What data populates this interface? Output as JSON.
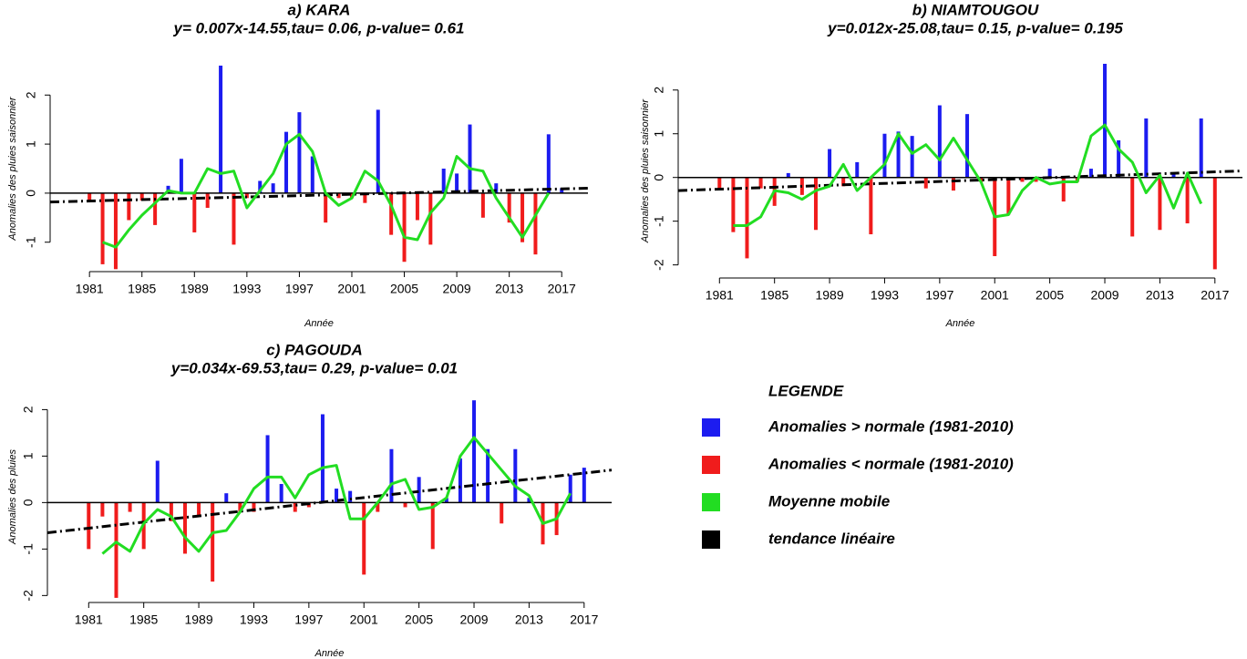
{
  "chart_data": [
    {
      "type": "bar",
      "title": "a) KARA",
      "subtitle": "y= 0.007x-14.55,tau= 0.06, p-value= 0.61",
      "x_label": "Année",
      "y_label": "Anomalies des pluies saisonnier",
      "x": [
        1981,
        1982,
        1983,
        1984,
        1985,
        1986,
        1987,
        1988,
        1989,
        1990,
        1991,
        1992,
        1993,
        1994,
        1995,
        1996,
        1997,
        1998,
        1999,
        2000,
        2001,
        2002,
        2003,
        2004,
        2005,
        2006,
        2007,
        2008,
        2009,
        2010,
        2011,
        2012,
        2013,
        2014,
        2015,
        2016,
        2017
      ],
      "values": [
        -0.15,
        -1.45,
        -1.55,
        -0.55,
        -0.15,
        -0.65,
        0.15,
        0.7,
        -0.8,
        -0.3,
        2.6,
        -1.05,
        -0.1,
        0.25,
        0.2,
        1.25,
        1.65,
        0.75,
        -0.6,
        -0.1,
        -0.1,
        -0.2,
        1.7,
        -0.85,
        -1.4,
        -0.55,
        -1.05,
        0.5,
        0.4,
        1.4,
        -0.5,
        0.2,
        -0.6,
        -1.0,
        -1.25,
        1.2,
        0.1
      ],
      "moving_average": [
        null,
        -1.0,
        -1.1,
        -0.75,
        -0.45,
        -0.2,
        0.05,
        0.0,
        0.0,
        0.5,
        0.4,
        0.45,
        -0.3,
        0.05,
        0.4,
        1.0,
        1.2,
        0.85,
        0.0,
        -0.25,
        -0.1,
        0.45,
        0.25,
        -0.25,
        -0.9,
        -0.95,
        -0.4,
        -0.1,
        0.75,
        0.5,
        0.45,
        -0.1,
        -0.5,
        -0.9,
        -0.45,
        0.0,
        null
      ],
      "trend": {
        "x": [
          1978,
          2019
        ],
        "values": [
          -0.18,
          0.1
        ]
      },
      "color_above": "#1c1cf0",
      "color_below": "#f01c1c",
      "ma_color": "#22dd22",
      "trend_color": "#000000",
      "xlim": [
        1978,
        2019
      ],
      "ylim": [
        -1.6,
        2.6
      ],
      "xticks": [
        1981,
        1985,
        1989,
        1993,
        1997,
        2001,
        2005,
        2009,
        2013,
        2017
      ],
      "yticks": [
        -1,
        0,
        1,
        2
      ]
    },
    {
      "type": "bar",
      "title": "b) NIAMTOUGOU",
      "subtitle": "y=0.012x-25.08,tau= 0.15, p-value= 0.195",
      "x_label": "Année",
      "y_label": "Anomalies des pluies saisonnier",
      "x": [
        1981,
        1982,
        1983,
        1984,
        1985,
        1986,
        1987,
        1988,
        1989,
        1990,
        1991,
        1992,
        1993,
        1994,
        1995,
        1996,
        1997,
        1998,
        1999,
        2000,
        2001,
        2002,
        2003,
        2004,
        2005,
        2006,
        2007,
        2008,
        2009,
        2010,
        2011,
        2012,
        2013,
        2014,
        2015,
        2016,
        2017
      ],
      "values": [
        -0.25,
        -1.25,
        -1.85,
        -0.25,
        -0.65,
        0.1,
        -0.4,
        -1.2,
        0.65,
        -0.2,
        0.35,
        -1.3,
        1.0,
        1.05,
        0.95,
        -0.25,
        1.65,
        -0.3,
        1.45,
        -0.1,
        -1.8,
        -0.85,
        -0.1,
        -0.1,
        0.2,
        -0.55,
        -0.1,
        0.2,
        2.6,
        0.85,
        -1.35,
        1.35,
        -1.2,
        0.1,
        -1.05,
        1.35,
        -2.1
      ],
      "moving_average": [
        null,
        -1.1,
        -1.1,
        -0.9,
        -0.3,
        -0.35,
        -0.5,
        -0.3,
        -0.2,
        0.3,
        -0.3,
        0.0,
        0.3,
        1.0,
        0.55,
        0.75,
        0.4,
        0.9,
        0.4,
        -0.1,
        -0.9,
        -0.85,
        -0.3,
        0.0,
        -0.15,
        -0.1,
        -0.1,
        0.95,
        1.2,
        0.65,
        0.35,
        -0.35,
        0.05,
        -0.7,
        0.1,
        -0.6,
        null
      ],
      "trend": {
        "x": [
          1978,
          2019
        ],
        "values": [
          -0.3,
          0.15
        ]
      },
      "color_above": "#1c1cf0",
      "color_below": "#f01c1c",
      "ma_color": "#22dd22",
      "trend_color": "#000000",
      "xlim": [
        1978,
        2019
      ],
      "ylim": [
        -2.3,
        2.6
      ],
      "xticks": [
        1981,
        1985,
        1989,
        1993,
        1997,
        2001,
        2005,
        2009,
        2013,
        2017
      ],
      "yticks": [
        -2,
        -1,
        0,
        1,
        2
      ]
    },
    {
      "type": "bar",
      "title": "c) PAGOUDA",
      "subtitle": "y=0.034x-69.53,tau= 0.29, p-value= 0.01",
      "x_label": "Année",
      "y_label": "Anomalies des pluies",
      "x": [
        1981,
        1982,
        1983,
        1984,
        1985,
        1986,
        1987,
        1988,
        1989,
        1990,
        1991,
        1992,
        1993,
        1994,
        1995,
        1996,
        1997,
        1998,
        1999,
        2000,
        2001,
        2002,
        2003,
        2004,
        2005,
        2006,
        2007,
        2008,
        2009,
        2010,
        2011,
        2012,
        2013,
        2014,
        2015,
        2016,
        2017
      ],
      "values": [
        -1.0,
        -0.3,
        -2.05,
        -0.2,
        -1.0,
        0.9,
        -0.4,
        -1.1,
        -0.3,
        -1.7,
        0.2,
        -0.2,
        -0.2,
        1.45,
        0.4,
        -0.2,
        -0.1,
        1.9,
        0.3,
        0.25,
        -1.55,
        -0.2,
        1.15,
        -0.1,
        0.55,
        -1.0,
        0.1,
        0.95,
        2.2,
        1.15,
        -0.45,
        1.15,
        0.1,
        -0.9,
        -0.7,
        0.6,
        0.75
      ],
      "moving_average": [
        null,
        -1.1,
        -0.85,
        -1.05,
        -0.45,
        -0.15,
        -0.3,
        -0.75,
        -1.05,
        -0.65,
        -0.6,
        -0.2,
        0.3,
        0.55,
        0.55,
        0.1,
        0.6,
        0.75,
        0.8,
        -0.35,
        -0.35,
        0.0,
        0.4,
        0.5,
        -0.15,
        -0.1,
        0.1,
        1.0,
        1.4,
        1.05,
        0.7,
        0.35,
        0.15,
        -0.45,
        -0.35,
        0.2,
        null
      ],
      "trend": {
        "x": [
          1978,
          2019
        ],
        "values": [
          -0.65,
          0.7
        ]
      },
      "color_above": "#1c1cf0",
      "color_below": "#f01c1c",
      "ma_color": "#22dd22",
      "trend_color": "#000000",
      "xlim": [
        1978,
        2019
      ],
      "ylim": [
        -2.15,
        2.4
      ],
      "xticks": [
        1981,
        1985,
        1989,
        1993,
        1997,
        2001,
        2005,
        2009,
        2013,
        2017
      ],
      "yticks": [
        -2,
        -1,
        0,
        1,
        2
      ]
    }
  ],
  "legend": {
    "title": "LEGENDE",
    "entries": [
      {
        "label": "Anomalies > normale (1981-2010)",
        "color": "#1c1cf0"
      },
      {
        "label": "Anomalies < normale (1981-2010)",
        "color": "#f01c1c"
      },
      {
        "label": "Moyenne mobile",
        "color": "#22dd22"
      },
      {
        "label": "tendance linéaire",
        "color": "#000000"
      }
    ]
  }
}
